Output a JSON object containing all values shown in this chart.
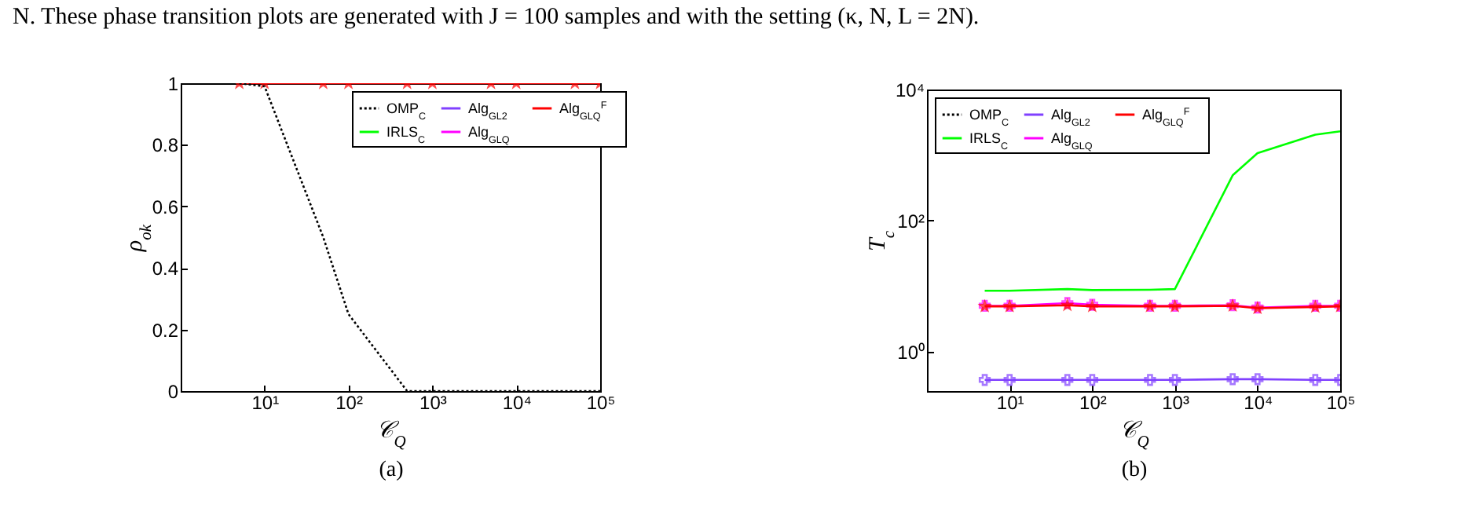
{
  "chart_data": [
    {
      "type": "line",
      "xlabel": "𝒞$_{Q}$",
      "ylabel": "ρ$_{ok}$",
      "x": [
        5,
        10,
        50,
        100,
        500,
        1000,
        5000,
        10000,
        50000,
        100000
      ],
      "log": "x",
      "xlim": [
        1,
        100000
      ],
      "xticks": [
        {
          "value": 10,
          "label": "10¹"
        },
        {
          "value": 100,
          "label": "10²"
        },
        {
          "value": 1000,
          "label": "10³"
        },
        {
          "value": 10000,
          "label": "10⁴"
        },
        {
          "value": 100000,
          "label": "10⁵"
        }
      ],
      "ylim": [
        0,
        1
      ],
      "yticks": [
        0,
        0.2,
        0.4,
        0.6,
        0.8,
        1
      ],
      "legend": "top right",
      "series": [
        {
          "name": "OMP$_{C}$",
          "color": "#000000",
          "line_style": "dotted",
          "marker": "none",
          "values": [
            1,
            0.99,
            0.5,
            0.25,
            0,
            0,
            0,
            0,
            0,
            0
          ]
        },
        {
          "name": "Alg$_{GL2}$",
          "color": "#8040ff",
          "line_style": "solid",
          "marker": "cross",
          "values": [
            null,
            null,
            null,
            null,
            null,
            null,
            null,
            null,
            null,
            null
          ]
        },
        {
          "name": "Alg$_{GLQ}$$^{F}$",
          "color": "#ff0000",
          "line_style": "solid",
          "marker": "star",
          "values": [
            1,
            1,
            1,
            1,
            1,
            1,
            1,
            1,
            1,
            1
          ]
        },
        {
          "name": "IRLS$_{C}$",
          "color": "#00ff00",
          "line_style": "solid",
          "marker": "none",
          "values": [
            null,
            null,
            null,
            null,
            null,
            null,
            null,
            null,
            null,
            null
          ]
        },
        {
          "name": "Alg$_{GLQ}$",
          "color": "#ff00ff",
          "line_style": "solid",
          "marker": "cross",
          "values": [
            null,
            null,
            null,
            null,
            null,
            null,
            null,
            null,
            null,
            null
          ]
        }
      ],
      "annotations": [
        "N. These phase transition plots are generated with J = 100 samples and with the setting (κ, N, L = 2N).",
        "(a)"
      ]
    },
    {
      "type": "line",
      "xlabel": "𝒞$_{Q}$",
      "ylabel": "T$_{c}$",
      "x": [
        5,
        10,
        50,
        100,
        500,
        1000,
        5000,
        10000,
        50000,
        100000
      ],
      "log": "xy",
      "xlim": [
        1,
        100000
      ],
      "xticks": [
        {
          "value": 10,
          "label": "10¹"
        },
        {
          "value": 100,
          "label": "10²"
        },
        {
          "value": 1000,
          "label": "10³"
        },
        {
          "value": 10000,
          "label": "10⁴"
        },
        {
          "value": 100000,
          "label": "10⁵"
        }
      ],
      "ylim": [
        0.25,
        10000
      ],
      "yticks": [
        {
          "value": 1,
          "label": "10⁰"
        },
        {
          "value": 100,
          "label": "10²"
        },
        {
          "value": 10000,
          "label": "10⁴"
        }
      ],
      "legend": "top left",
      "series": [
        {
          "name": "OMP$_{C}$",
          "color": "#000000",
          "line_style": "dotted",
          "marker": "none",
          "values": [
            null,
            null,
            null,
            null,
            null,
            null,
            null,
            null,
            null,
            null
          ]
        },
        {
          "name": "Alg$_{GL2}$",
          "color": "#8040ff",
          "line_style": "solid",
          "marker": "cross",
          "values": [
            0.37,
            0.37,
            0.37,
            0.37,
            0.37,
            0.37,
            0.38,
            0.38,
            0.37,
            0.37
          ]
        },
        {
          "name": "Alg$_{GLQ}$$^{F}$",
          "color": "#ff0000",
          "line_style": "solid",
          "marker": "star",
          "values": [
            4.9,
            4.9,
            5.1,
            4.9,
            4.9,
            4.9,
            5,
            4.6,
            4.8,
            4.9
          ]
        },
        {
          "name": "IRLS$_{C}$",
          "color": "#00ff00",
          "line_style": "solid",
          "marker": "none",
          "values": [
            8.5,
            8.5,
            9,
            8.7,
            8.8,
            9,
            490,
            1070,
            2050,
            2300
          ]
        },
        {
          "name": "Alg$_{GLQ}$",
          "color": "#ff00ff",
          "line_style": "solid",
          "marker": "cross",
          "values": [
            5,
            5,
            5.5,
            5.2,
            5,
            5,
            5.1,
            4.7,
            5,
            5
          ]
        }
      ],
      "annotations": [
        "(b)"
      ]
    }
  ]
}
